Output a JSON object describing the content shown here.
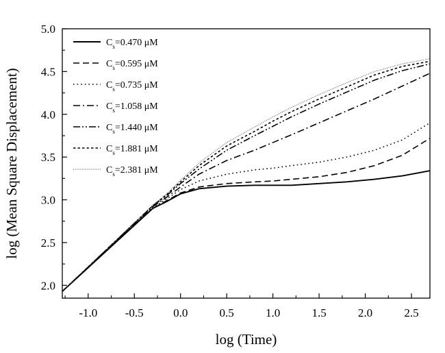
{
  "chart_data": {
    "type": "line",
    "xlabel": "log (Time)",
    "ylabel": "log (Mean Square Displacement)",
    "xlim": [
      -1.28,
      2.7
    ],
    "ylim": [
      1.85,
      5.0
    ],
    "xticks": [
      -1.0,
      -0.5,
      0.0,
      0.5,
      1.0,
      1.5,
      2.0,
      2.5
    ],
    "xtick_labels": [
      "-1.0",
      "-0.5",
      "0.0",
      "0.5",
      "1.0",
      "1.5",
      "2.0",
      "2.5"
    ],
    "yticks": [
      2.0,
      2.5,
      3.0,
      3.5,
      4.0,
      4.5,
      5.0
    ],
    "ytick_labels": [
      "2.0",
      "2.5",
      "3.0",
      "3.5",
      "4.0",
      "4.5",
      "5.0"
    ],
    "grid": false,
    "legend_position": "top-left",
    "series": [
      {
        "name": "Cs=0.470 μM",
        "label_main": "C",
        "label_sub": "s",
        "label_rest": "=0.470 μM",
        "dash": "solid",
        "x": [
          -1.28,
          -0.3,
          -0.15,
          0.0,
          0.2,
          0.5,
          0.8,
          1.0,
          1.2,
          1.5,
          1.8,
          2.1,
          2.4,
          2.7
        ],
        "y": [
          1.93,
          2.9,
          2.98,
          3.07,
          3.13,
          3.16,
          3.17,
          3.17,
          3.17,
          3.19,
          3.21,
          3.24,
          3.28,
          3.34
        ]
      },
      {
        "name": "Cs=0.595 μM",
        "label_main": "C",
        "label_sub": "s",
        "label_rest": "=0.595 μM",
        "dash": "dashed",
        "x": [
          -1.28,
          -0.3,
          -0.15,
          0.0,
          0.2,
          0.5,
          0.8,
          1.0,
          1.2,
          1.5,
          1.8,
          2.1,
          2.4,
          2.7
        ],
        "y": [
          1.93,
          2.9,
          2.99,
          3.08,
          3.15,
          3.19,
          3.21,
          3.22,
          3.24,
          3.27,
          3.32,
          3.4,
          3.52,
          3.72
        ]
      },
      {
        "name": "Cs=0.735 μM",
        "label_main": "C",
        "label_sub": "s",
        "label_rest": "=0.735 μM",
        "dash": "dotted",
        "x": [
          -1.28,
          -0.3,
          -0.15,
          0.0,
          0.2,
          0.5,
          0.8,
          1.0,
          1.2,
          1.5,
          1.8,
          2.1,
          2.4,
          2.7
        ],
        "y": [
          1.93,
          2.91,
          3.01,
          3.12,
          3.22,
          3.3,
          3.35,
          3.37,
          3.4,
          3.44,
          3.5,
          3.58,
          3.7,
          3.9
        ]
      },
      {
        "name": "Cs=1.058 μM",
        "label_main": "C",
        "label_sub": "s",
        "label_rest": "=1.058 μM",
        "dash": "dashdot",
        "x": [
          -1.28,
          -0.3,
          -0.15,
          0.0,
          0.2,
          0.5,
          0.8,
          1.0,
          1.2,
          1.5,
          1.8,
          2.1,
          2.4,
          2.7
        ],
        "y": [
          1.93,
          2.92,
          3.03,
          3.15,
          3.3,
          3.46,
          3.58,
          3.67,
          3.76,
          3.9,
          4.04,
          4.18,
          4.33,
          4.48
        ]
      },
      {
        "name": "Cs=1.440 μM",
        "label_main": "C",
        "label_sub": "s",
        "label_rest": "=1.440 μM",
        "dash": "dashdotdot",
        "x": [
          -1.28,
          -0.3,
          -0.15,
          0.0,
          0.2,
          0.5,
          0.8,
          1.0,
          1.2,
          1.5,
          1.8,
          2.1,
          2.4,
          2.7
        ],
        "y": [
          1.93,
          2.93,
          3.05,
          3.19,
          3.36,
          3.58,
          3.75,
          3.86,
          3.97,
          4.12,
          4.26,
          4.4,
          4.51,
          4.59
        ]
      },
      {
        "name": "Cs=1.881 μM",
        "label_main": "C",
        "label_sub": "s",
        "label_rest": "=1.881 μM",
        "dash": "shortdash",
        "x": [
          -1.28,
          -0.3,
          -0.15,
          0.0,
          0.2,
          0.5,
          0.8,
          1.0,
          1.2,
          1.5,
          1.8,
          2.1,
          2.4,
          2.7
        ],
        "y": [
          1.93,
          2.93,
          3.06,
          3.21,
          3.4,
          3.63,
          3.8,
          3.92,
          4.03,
          4.18,
          4.32,
          4.46,
          4.56,
          4.62
        ]
      },
      {
        "name": "Cs=2.381 μM",
        "label_main": "C",
        "label_sub": "s",
        "label_rest": "=2.381 μM",
        "dash": "finedot",
        "x": [
          -1.28,
          -0.3,
          -0.15,
          0.0,
          0.2,
          0.5,
          0.8,
          1.0,
          1.2,
          1.5,
          1.8,
          2.1,
          2.4,
          2.7
        ],
        "y": [
          1.93,
          2.94,
          3.07,
          3.23,
          3.43,
          3.67,
          3.85,
          3.97,
          4.08,
          4.23,
          4.37,
          4.5,
          4.59,
          4.65
        ]
      }
    ]
  }
}
